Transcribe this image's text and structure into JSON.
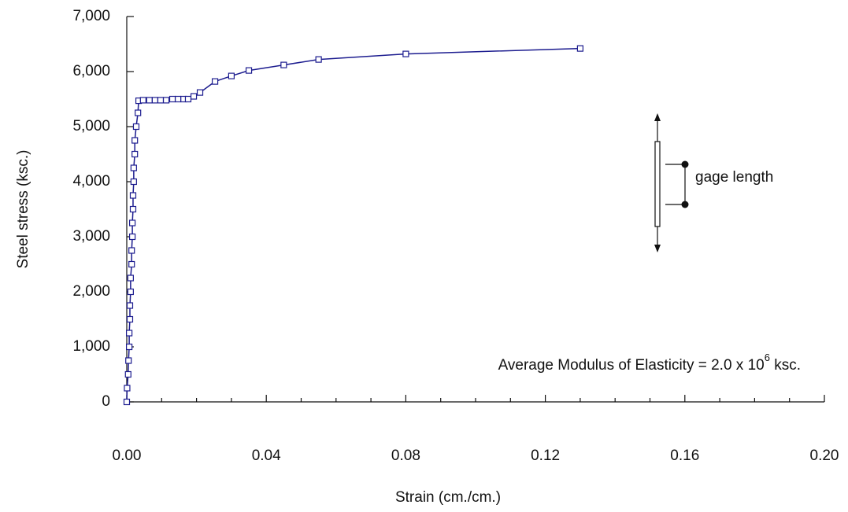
{
  "chart_data": {
    "type": "line",
    "xlabel": "Strain (cm./cm.)",
    "ylabel": "Steel stress (ksc.)",
    "xlim": [
      0,
      0.2
    ],
    "ylim": [
      0,
      7000
    ],
    "xticks": [
      {
        "value": 0,
        "label": "0.00"
      },
      0.04,
      0.08,
      0.12,
      0.16,
      {
        "value": 0.2,
        "label": "0.20"
      }
    ],
    "xminorticks": [
      0.01,
      0.02,
      0.03,
      0.05,
      0.06,
      0.07,
      0.09,
      0.1,
      0.11,
      0.13,
      0.14,
      0.15,
      0.17,
      0.18,
      0.19
    ],
    "yticks": [
      0,
      {
        "value": 1000,
        "label": "1,000"
      },
      {
        "value": 2000,
        "label": "2,000"
      },
      {
        "value": 3000,
        "label": "3,000"
      },
      {
        "value": 4000,
        "label": "4,000"
      },
      {
        "value": 5000,
        "label": "5,000"
      },
      {
        "value": 6000,
        "label": "6,000"
      },
      {
        "value": 7000,
        "label": "7,000"
      }
    ],
    "series": [
      {
        "color": "#1c1c8f",
        "x": [
          0,
          0.0001,
          0.0004,
          0.0005,
          0.0007,
          0.0007,
          0.0009,
          0.0009,
          0.0011,
          0.0011,
          0.0014,
          0.0014,
          0.0016,
          0.0016,
          0.0018,
          0.0018,
          0.002,
          0.002,
          0.0023,
          0.0023,
          0.0027,
          0.0032,
          0.0034,
          0.0047,
          0.0065,
          0.0081,
          0.0097,
          0.0113,
          0.0131,
          0.0147,
          0.0163,
          0.0176,
          0.0192,
          0.021,
          0.0253,
          0.03,
          0.035,
          0.045,
          0.055,
          0.08,
          0.13
        ],
        "values": [
          0,
          250,
          500,
          750,
          1000,
          1250,
          1500,
          1750,
          2000,
          2250,
          2500,
          2750,
          3000,
          3250,
          3500,
          3750,
          4000,
          4250,
          4500,
          4750,
          5000,
          5250,
          5470,
          5480,
          5480,
          5480,
          5480,
          5480,
          5500,
          5500,
          5500,
          5500,
          5550,
          5620,
          5820,
          5920,
          6020,
          6120,
          6220,
          6320,
          6420
        ]
      }
    ],
    "annotation": {
      "text": "Average Modulus of Elasticity = 2.0 x 10",
      "superscript": "6",
      "suffix": " ksc."
    },
    "inset_label": "gage length"
  }
}
